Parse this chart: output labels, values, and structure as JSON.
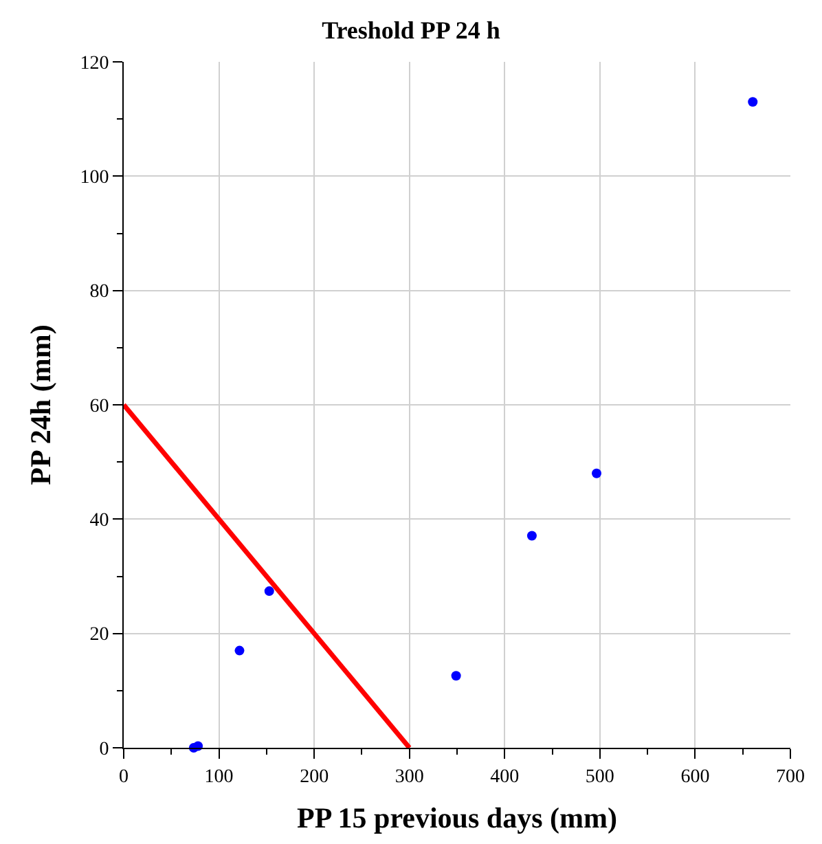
{
  "chart_data": {
    "type": "scatter",
    "title": "Treshold PP 24 h",
    "xlabel": "PP 15 previous days (mm)",
    "ylabel": "PP 24h (mm)",
    "series": [
      {
        "color": "#0000ff",
        "marker": "circle",
        "x": [
          73.5,
          78,
          121.6,
          152.8,
          349,
          428.6,
          496.5,
          660.5
        ],
        "values": [
          0,
          0.3,
          17.0,
          27.4,
          12.6,
          37.1,
          48.0,
          113.0
        ]
      },
      {
        "type": "line",
        "color": "#ff0000",
        "x": [
          0,
          300
        ],
        "values": [
          60,
          0
        ],
        "line_style": "solid",
        "marker": "none"
      }
    ],
    "xlim": [
      0,
      700
    ],
    "ylim": [
      0,
      120
    ],
    "xticks": [
      0,
      {
        "value": 50,
        "label": null
      },
      100,
      {
        "value": 150,
        "label": null
      },
      200,
      {
        "value": 250,
        "label": null
      },
      300,
      {
        "value": 350,
        "label": null
      },
      400,
      {
        "value": 450,
        "label": null
      },
      500,
      {
        "value": 550,
        "label": null
      },
      600,
      {
        "value": 650,
        "label": null
      },
      700
    ],
    "yticks": [
      0,
      {
        "value": 10,
        "label": null
      },
      20,
      {
        "value": 30,
        "label": null
      },
      40,
      {
        "value": 50,
        "label": null
      },
      60,
      {
        "value": 70,
        "label": null
      },
      80,
      {
        "value": 90,
        "label": null
      },
      100,
      {
        "value": 110,
        "label": null
      },
      120
    ],
    "grid": true
  }
}
